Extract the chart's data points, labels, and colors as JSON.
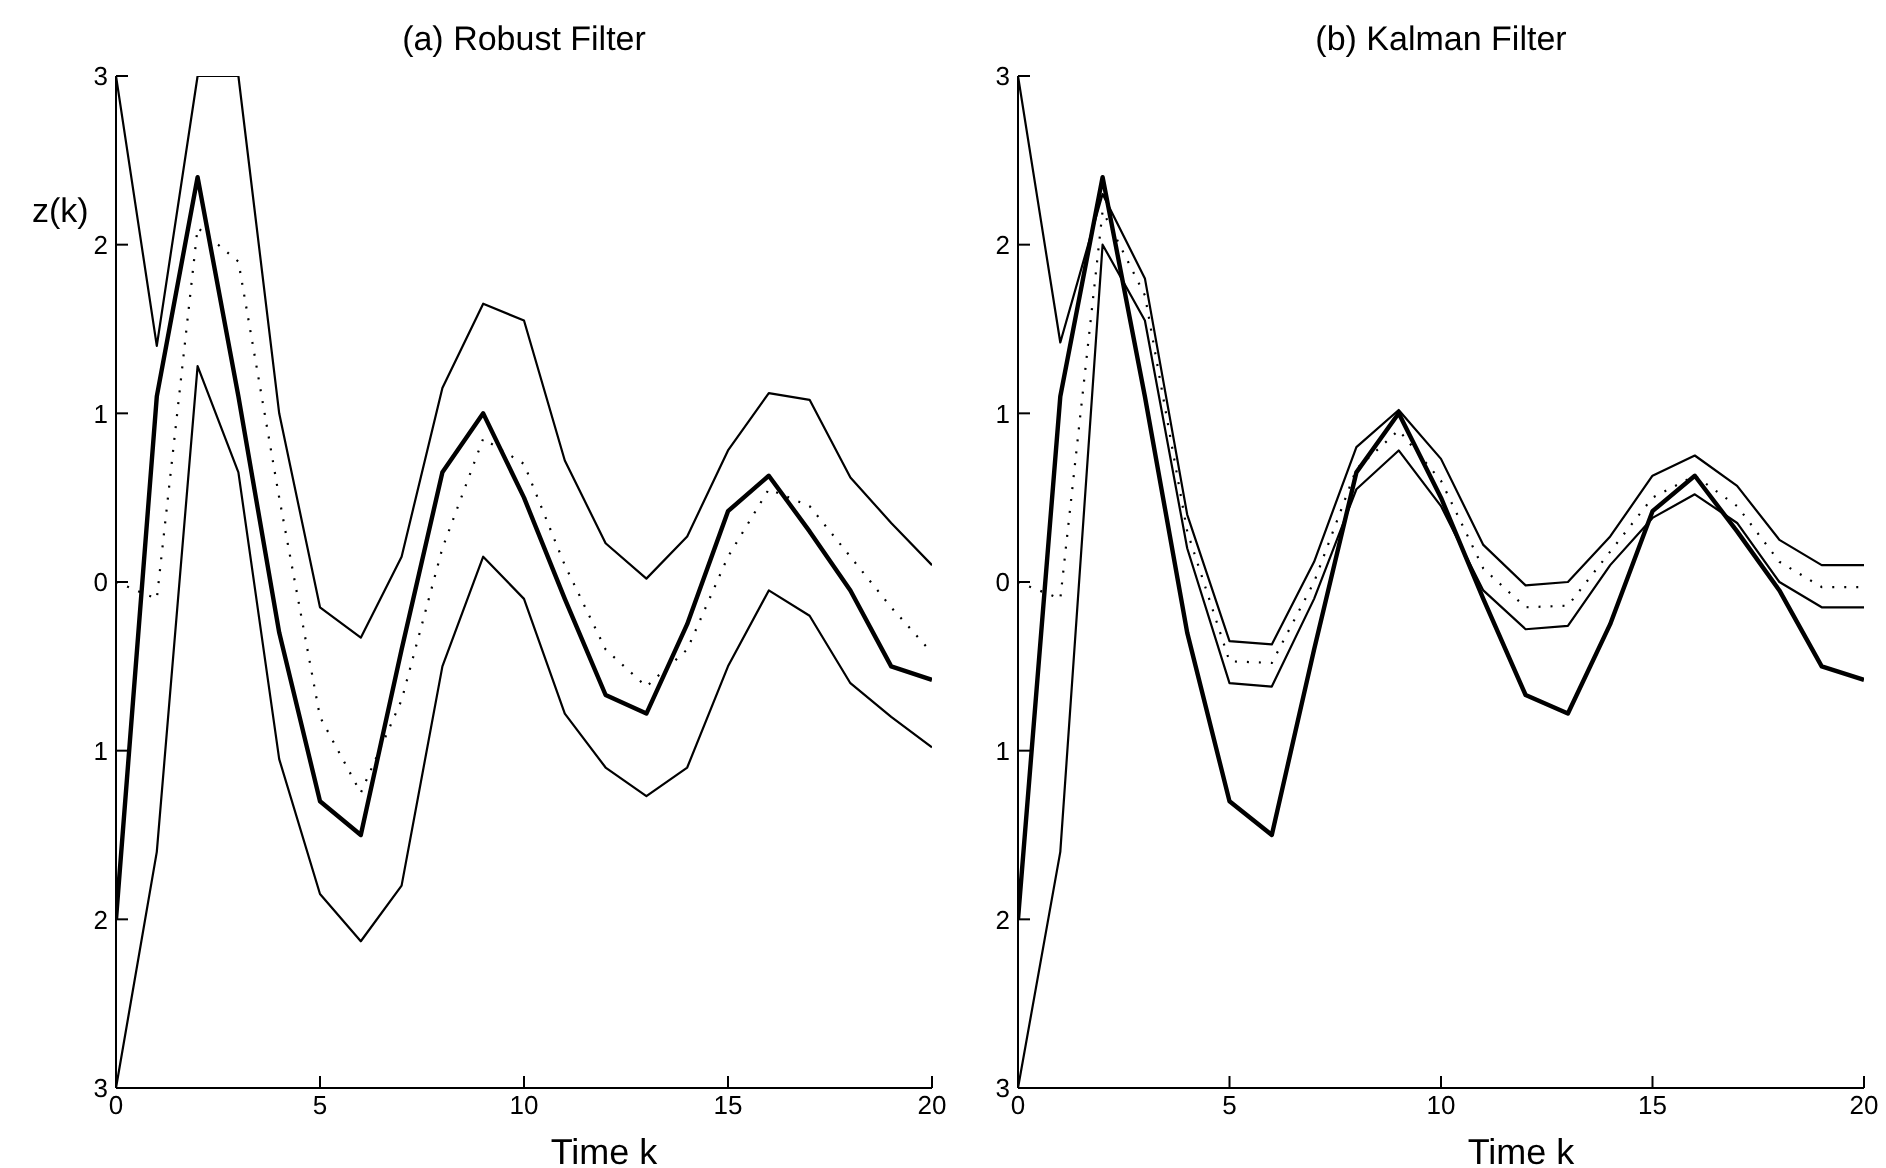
{
  "chart_data": [
    {
      "type": "line",
      "title": "(a) Robust Filter",
      "xlabel": "Time k",
      "ylabel": "z(k)",
      "x": [
        0,
        1,
        2,
        3,
        4,
        5,
        6,
        7,
        8,
        9,
        10,
        11,
        12,
        13,
        14,
        15,
        16,
        17,
        18,
        19,
        20
      ],
      "xlim": [
        0,
        20
      ],
      "xticks": [
        0,
        5,
        10,
        15,
        20
      ],
      "ylim": [
        -3,
        3
      ],
      "yticks": [
        {
          "value": -3,
          "label": "3"
        },
        {
          "value": -2,
          "label": "2"
        },
        {
          "value": -1,
          "label": "1"
        },
        0,
        1,
        2,
        3
      ],
      "grid": false,
      "legend": false,
      "marker": "none",
      "series": [
        {
          "color": "#000000",
          "line_style": "solid",
          "values": [
            -2,
            1.1,
            2.4,
            1.1,
            -0.3,
            -1.3,
            -1.5,
            -0.4,
            0.65,
            1.0,
            0.5,
            -0.1,
            -0.67,
            -0.78,
            -0.25,
            0.42,
            0.63,
            0.3,
            -0.05,
            -0.5,
            -0.58
          ]
        },
        {
          "color": "#000000",
          "line_style": "dotted",
          "values": [
            0,
            -0.1,
            2.1,
            1.9,
            0.5,
            -0.8,
            -1.25,
            -0.7,
            0.2,
            0.85,
            0.7,
            0.1,
            -0.4,
            -0.62,
            -0.4,
            0.15,
            0.55,
            0.45,
            0.15,
            -0.15,
            -0.42
          ]
        },
        {
          "color": "#000000",
          "line_style": "solid",
          "values": [
            3,
            1.4,
            3,
            3,
            1.0,
            -0.15,
            -0.33,
            0.15,
            1.15,
            1.65,
            1.55,
            0.72,
            0.23,
            0.02,
            0.27,
            0.78,
            1.12,
            1.08,
            0.62,
            0.35,
            0.1
          ]
        },
        {
          "color": "#000000",
          "line_style": "solid",
          "values": [
            -3,
            -1.6,
            1.28,
            0.65,
            -1.05,
            -1.85,
            -2.13,
            -1.8,
            -0.5,
            0.15,
            -0.1,
            -0.78,
            -1.1,
            -1.27,
            -1.1,
            -0.5,
            -0.05,
            -0.2,
            -0.6,
            -0.8,
            -0.98
          ]
        }
      ]
    },
    {
      "type": "line",
      "title": "(b) Kalman Filter",
      "xlabel": "Time k",
      "x": [
        0,
        1,
        2,
        3,
        4,
        5,
        6,
        7,
        8,
        9,
        10,
        11,
        12,
        13,
        14,
        15,
        16,
        17,
        18,
        19,
        20
      ],
      "xlim": [
        0,
        20
      ],
      "xticks": [
        0,
        5,
        10,
        15,
        20
      ],
      "ylim": [
        -3,
        3
      ],
      "yticks": [
        {
          "value": -3,
          "label": "3"
        },
        {
          "value": -2,
          "label": "2"
        },
        {
          "value": -1,
          "label": "1"
        },
        0,
        1,
        2,
        3
      ],
      "grid": false,
      "legend": false,
      "marker": "none",
      "series": [
        {
          "color": "#000000",
          "line_style": "solid",
          "values": [
            -2,
            1.1,
            2.4,
            1.1,
            -0.3,
            -1.3,
            -1.5,
            -0.4,
            0.65,
            1.0,
            0.5,
            -0.1,
            -0.67,
            -0.78,
            -0.25,
            0.42,
            0.63,
            0.3,
            -0.05,
            -0.5,
            -0.58
          ]
        },
        {
          "color": "#000000",
          "line_style": "dotted",
          "values": [
            0,
            -0.1,
            2.2,
            1.7,
            0.3,
            -0.47,
            -0.48,
            0.0,
            0.67,
            0.9,
            0.6,
            0.08,
            -0.15,
            -0.14,
            0.18,
            0.5,
            0.63,
            0.45,
            0.12,
            -0.03,
            -0.03
          ]
        },
        {
          "color": "#000000",
          "line_style": "solid",
          "values": [
            3,
            1.42,
            2.3,
            1.8,
            0.4,
            -0.35,
            -0.37,
            0.12,
            0.8,
            1.02,
            0.73,
            0.22,
            -0.02,
            0.0,
            0.27,
            0.63,
            0.75,
            0.57,
            0.25,
            0.1,
            0.1
          ]
        },
        {
          "color": "#000000",
          "line_style": "solid",
          "values": [
            -3,
            -1.6,
            2.0,
            1.55,
            0.2,
            -0.6,
            -0.62,
            -0.1,
            0.55,
            0.78,
            0.45,
            -0.05,
            -0.28,
            -0.26,
            0.1,
            0.38,
            0.52,
            0.35,
            0.0,
            -0.15,
            -0.15
          ]
        }
      ]
    }
  ]
}
